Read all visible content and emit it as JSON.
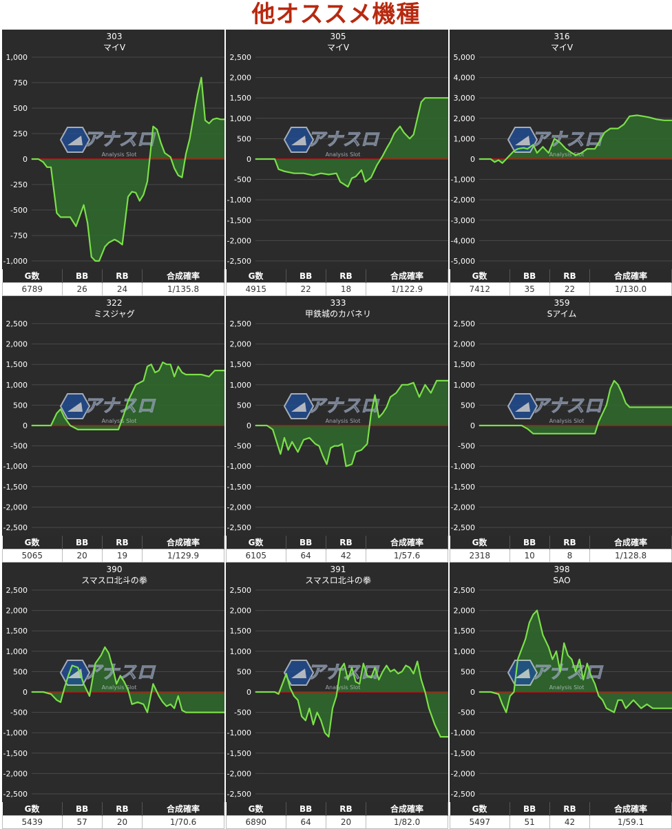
{
  "page_title": "他オススメ機種",
  "colors": {
    "plot_bg": "#2b2b2b",
    "line": "#7be04a",
    "fill": "#2f6b2c",
    "zero_line": "#d01010",
    "grid": "#4a4a4a",
    "title_red": "#b8290f"
  },
  "watermark": {
    "brand": "アナスロ",
    "tagline": "Analysis Slot",
    "icon": "analysis-slot-logo-icon"
  },
  "table_headers": [
    "G数",
    "BB",
    "RB",
    "合成確率"
  ],
  "chart_data": [
    {
      "type": "area",
      "machine_no": "303",
      "machine_name": "マイV",
      "yticks": [
        "1,000",
        "750",
        "500",
        "250",
        "0",
        "-250",
        "-500",
        "-750",
        "-1,000"
      ],
      "ylim": [
        -1000,
        1000
      ],
      "x": [
        0,
        0.035,
        0.06,
        0.08,
        0.1,
        0.13,
        0.15,
        0.17,
        0.2,
        0.23,
        0.27,
        0.29,
        0.31,
        0.33,
        0.35,
        0.38,
        0.4,
        0.43,
        0.45,
        0.47,
        0.5,
        0.52,
        0.54,
        0.56,
        0.58,
        0.6,
        0.63,
        0.65,
        0.67,
        0.69,
        0.72,
        0.74,
        0.76,
        0.78,
        0.8,
        0.82,
        0.84,
        0.86,
        0.88,
        0.9,
        0.92,
        0.94,
        0.96,
        0.98,
        1.0
      ],
      "y": [
        0,
        0,
        -30,
        -80,
        -80,
        -530,
        -570,
        -570,
        -570,
        -660,
        -450,
        -630,
        -960,
        -1000,
        -1000,
        -860,
        -820,
        -790,
        -810,
        -840,
        -370,
        -320,
        -330,
        -410,
        -350,
        -220,
        320,
        290,
        160,
        60,
        20,
        -90,
        -160,
        -180,
        50,
        200,
        420,
        630,
        800,
        380,
        350,
        390,
        400,
        390,
        390
      ],
      "stats": {
        "games": "6789",
        "bb": "26",
        "rb": "24",
        "prob": "1/135.8"
      }
    },
    {
      "type": "area",
      "machine_no": "305",
      "machine_name": "マイV",
      "yticks": [
        "2,500",
        "2,000",
        "1,500",
        "1,000",
        "500",
        "0",
        "-500",
        "-1,000",
        "-1,500",
        "-2,000",
        "-2,500"
      ],
      "ylim": [
        -2500,
        2500
      ],
      "x": [
        0,
        0.05,
        0.1,
        0.12,
        0.15,
        0.2,
        0.25,
        0.3,
        0.34,
        0.38,
        0.42,
        0.44,
        0.46,
        0.48,
        0.5,
        0.52,
        0.55,
        0.57,
        0.6,
        0.63,
        0.66,
        0.68,
        0.7,
        0.72,
        0.75,
        0.77,
        0.8,
        0.82,
        0.84,
        0.86,
        0.88,
        0.9,
        0.93,
        0.96,
        1.0
      ],
      "y": [
        0,
        0,
        0,
        -250,
        -300,
        -350,
        -350,
        -400,
        -350,
        -380,
        -350,
        -560,
        -620,
        -680,
        -470,
        -430,
        -270,
        -560,
        -450,
        -150,
        80,
        260,
        420,
        630,
        800,
        650,
        500,
        600,
        1000,
        1400,
        1500,
        1500,
        1500,
        1500,
        1500
      ],
      "stats": {
        "games": "4915",
        "bb": "22",
        "rb": "18",
        "prob": "1/122.9"
      }
    },
    {
      "type": "area",
      "machine_no": "316",
      "machine_name": "マイV",
      "yticks": [
        "5,000",
        "4,000",
        "3,000",
        "2,000",
        "1,000",
        "0",
        "-1,000",
        "-2,000",
        "-3,000",
        "-4,000",
        "-5,000"
      ],
      "ylim": [
        -5000,
        5000
      ],
      "x": [
        0,
        0.03,
        0.06,
        0.08,
        0.1,
        0.12,
        0.15,
        0.18,
        0.2,
        0.23,
        0.25,
        0.28,
        0.3,
        0.33,
        0.36,
        0.39,
        0.42,
        0.45,
        0.48,
        0.5,
        0.53,
        0.56,
        0.6,
        0.62,
        0.65,
        0.68,
        0.72,
        0.75,
        0.78,
        0.82,
        0.85,
        0.88,
        0.92,
        0.96,
        1.0
      ],
      "y": [
        0,
        0,
        0,
        -150,
        -50,
        -200,
        100,
        400,
        500,
        550,
        500,
        700,
        300,
        600,
        300,
        1000,
        800,
        500,
        300,
        200,
        300,
        500,
        500,
        800,
        1300,
        1500,
        1500,
        1700,
        2100,
        2150,
        2100,
        2050,
        1950,
        1900,
        1900
      ],
      "stats": {
        "games": "7412",
        "bb": "35",
        "rb": "22",
        "prob": "1/130.0"
      }
    },
    {
      "type": "area",
      "machine_no": "322",
      "machine_name": "ミスジャグ",
      "yticks": [
        "2,500",
        "2,000",
        "1,500",
        "1,000",
        "500",
        "0",
        "-500",
        "-1,000",
        "-1,500",
        "-2,000",
        "-2,500"
      ],
      "ylim": [
        -2500,
        2500
      ],
      "x": [
        0,
        0.05,
        0.1,
        0.13,
        0.15,
        0.17,
        0.2,
        0.24,
        0.3,
        0.38,
        0.45,
        0.48,
        0.5,
        0.54,
        0.58,
        0.6,
        0.62,
        0.64,
        0.66,
        0.68,
        0.7,
        0.72,
        0.74,
        0.76,
        0.78,
        0.8,
        0.84,
        0.88,
        0.92,
        0.95,
        0.98,
        1.0
      ],
      "y": [
        0,
        0,
        0,
        300,
        400,
        200,
        0,
        -100,
        -100,
        -100,
        -100,
        300,
        600,
        1000,
        1100,
        1450,
        1500,
        1300,
        1350,
        1550,
        1500,
        1500,
        1200,
        1450,
        1300,
        1250,
        1250,
        1250,
        1200,
        1350,
        1350,
        1350
      ],
      "stats": {
        "games": "5065",
        "bb": "20",
        "rb": "19",
        "prob": "1/129.9"
      }
    },
    {
      "type": "area",
      "machine_no": "333",
      "machine_name": "甲鉄城のカバネリ",
      "yticks": [
        "2,500",
        "2,000",
        "1,500",
        "1,000",
        "500",
        "0",
        "-500",
        "-1,000",
        "-1,500",
        "-2,000",
        "-2,500"
      ],
      "ylim": [
        -2500,
        2500
      ],
      "x": [
        0,
        0.06,
        0.09,
        0.11,
        0.13,
        0.15,
        0.17,
        0.19,
        0.22,
        0.25,
        0.28,
        0.31,
        0.33,
        0.35,
        0.37,
        0.39,
        0.41,
        0.43,
        0.45,
        0.47,
        0.5,
        0.52,
        0.55,
        0.58,
        0.6,
        0.62,
        0.64,
        0.66,
        0.68,
        0.7,
        0.73,
        0.76,
        0.79,
        0.82,
        0.85,
        0.88,
        0.91,
        0.94,
        0.97,
        1.0
      ],
      "y": [
        0,
        0,
        -100,
        -400,
        -700,
        -300,
        -600,
        -400,
        -650,
        -350,
        -300,
        -450,
        -500,
        -750,
        -950,
        -550,
        -500,
        -500,
        -450,
        -1000,
        -950,
        -650,
        -600,
        -450,
        300,
        750,
        200,
        300,
        450,
        700,
        800,
        1000,
        1000,
        1050,
        700,
        1000,
        800,
        1100,
        1100,
        1100
      ],
      "stats": {
        "games": "6105",
        "bb": "64",
        "rb": "42",
        "prob": "1/57.6"
      }
    },
    {
      "type": "area",
      "machine_no": "359",
      "machine_name": "Sアイム",
      "yticks": [
        "2,500",
        "2,000",
        "1,500",
        "1,000",
        "500",
        "0",
        "-500",
        "-1,000",
        "-1,500",
        "-2,000",
        "-2,500"
      ],
      "ylim": [
        -2500,
        2500
      ],
      "x": [
        0,
        0.08,
        0.15,
        0.22,
        0.25,
        0.28,
        0.3,
        0.35,
        0.45,
        0.55,
        0.6,
        0.62,
        0.64,
        0.66,
        0.68,
        0.7,
        0.72,
        0.74,
        0.76,
        0.78,
        0.8,
        0.85,
        0.9,
        0.95,
        1.0
      ],
      "y": [
        0,
        0,
        0,
        0,
        -80,
        -200,
        -200,
        -200,
        -200,
        -200,
        -200,
        100,
        300,
        500,
        900,
        1100,
        1000,
        800,
        550,
        450,
        450,
        450,
        450,
        450,
        450
      ],
      "stats": {
        "games": "2318",
        "bb": "10",
        "rb": "8",
        "prob": "1/128.8"
      }
    },
    {
      "type": "area",
      "machine_no": "390",
      "machine_name": "スマスロ北斗の拳",
      "yticks": [
        "2,500",
        "2,000",
        "1,500",
        "1,000",
        "500",
        "0",
        "-500",
        "-1,000",
        "-1,500",
        "-2,000",
        "-2,500"
      ],
      "ylim": [
        -2500,
        2500
      ],
      "x": [
        0,
        0.06,
        0.1,
        0.13,
        0.15,
        0.17,
        0.19,
        0.21,
        0.24,
        0.27,
        0.3,
        0.33,
        0.36,
        0.38,
        0.4,
        0.42,
        0.44,
        0.46,
        0.48,
        0.5,
        0.52,
        0.55,
        0.58,
        0.6,
        0.63,
        0.66,
        0.68,
        0.7,
        0.72,
        0.74,
        0.76,
        0.78,
        0.8,
        0.85,
        0.9,
        1.0
      ],
      "y": [
        0,
        0,
        -50,
        -200,
        -250,
        100,
        400,
        650,
        600,
        200,
        -100,
        700,
        900,
        1100,
        950,
        600,
        200,
        400,
        250,
        50,
        -300,
        -250,
        -300,
        -500,
        200,
        -100,
        -250,
        -350,
        -300,
        -400,
        -100,
        -450,
        -500,
        -500,
        -500,
        -500
      ],
      "stats": {
        "games": "5439",
        "bb": "57",
        "rb": "20",
        "prob": "1/70.6"
      }
    },
    {
      "type": "area",
      "machine_no": "391",
      "machine_name": "スマスロ北斗の拳",
      "yticks": [
        "2,500",
        "2,000",
        "1,500",
        "1,000",
        "500",
        "0",
        "-500",
        "-1,000",
        "-1,500",
        "-2,000",
        "-2,500"
      ],
      "ylim": [
        -2500,
        2500
      ],
      "x": [
        0,
        0.06,
        0.1,
        0.12,
        0.14,
        0.16,
        0.18,
        0.2,
        0.22,
        0.24,
        0.26,
        0.28,
        0.3,
        0.32,
        0.34,
        0.36,
        0.38,
        0.4,
        0.42,
        0.44,
        0.46,
        0.48,
        0.5,
        0.52,
        0.54,
        0.56,
        0.58,
        0.6,
        0.62,
        0.64,
        0.66,
        0.68,
        0.7,
        0.72,
        0.74,
        0.76,
        0.78,
        0.8,
        0.82,
        0.84,
        0.86,
        0.88,
        0.9,
        0.93,
        0.96,
        1.0
      ],
      "y": [
        0,
        0,
        0,
        -50,
        200,
        450,
        100,
        -100,
        -200,
        -600,
        -700,
        -400,
        -800,
        -500,
        -700,
        -1000,
        -1100,
        -400,
        -100,
        550,
        700,
        300,
        600,
        250,
        200,
        700,
        400,
        350,
        600,
        300,
        500,
        650,
        500,
        550,
        450,
        500,
        650,
        600,
        450,
        750,
        300,
        0,
        -400,
        -800,
        -1100,
        -1100
      ],
      "stats": {
        "games": "6890",
        "bb": "64",
        "rb": "20",
        "prob": "1/82.0"
      }
    },
    {
      "type": "area",
      "machine_no": "398",
      "machine_name": "SAO",
      "yticks": [
        "2,500",
        "2,000",
        "1,500",
        "1,000",
        "500",
        "0",
        "-500",
        "-1,000",
        "-1,500",
        "-2,000",
        "-2,500"
      ],
      "ylim": [
        -2500,
        2500
      ],
      "x": [
        0,
        0.06,
        0.1,
        0.12,
        0.14,
        0.16,
        0.18,
        0.2,
        0.24,
        0.26,
        0.28,
        0.3,
        0.33,
        0.36,
        0.38,
        0.4,
        0.42,
        0.44,
        0.46,
        0.48,
        0.5,
        0.52,
        0.54,
        0.56,
        0.58,
        0.6,
        0.62,
        0.64,
        0.66,
        0.68,
        0.7,
        0.72,
        0.74,
        0.76,
        0.78,
        0.8,
        0.84,
        0.87,
        0.9,
        0.93,
        0.96,
        1.0
      ],
      "y": [
        0,
        0,
        -50,
        -300,
        -500,
        -100,
        0,
        800,
        1300,
        1700,
        1900,
        2000,
        1400,
        1100,
        800,
        1000,
        500,
        1200,
        900,
        800,
        500,
        800,
        300,
        700,
        400,
        200,
        -100,
        -200,
        -400,
        -450,
        -500,
        -200,
        -200,
        -400,
        -300,
        -200,
        -400,
        -300,
        -400,
        -400,
        -400,
        -400
      ],
      "stats": {
        "games": "5497",
        "bb": "51",
        "rb": "42",
        "prob": "1/59.1"
      }
    }
  ]
}
